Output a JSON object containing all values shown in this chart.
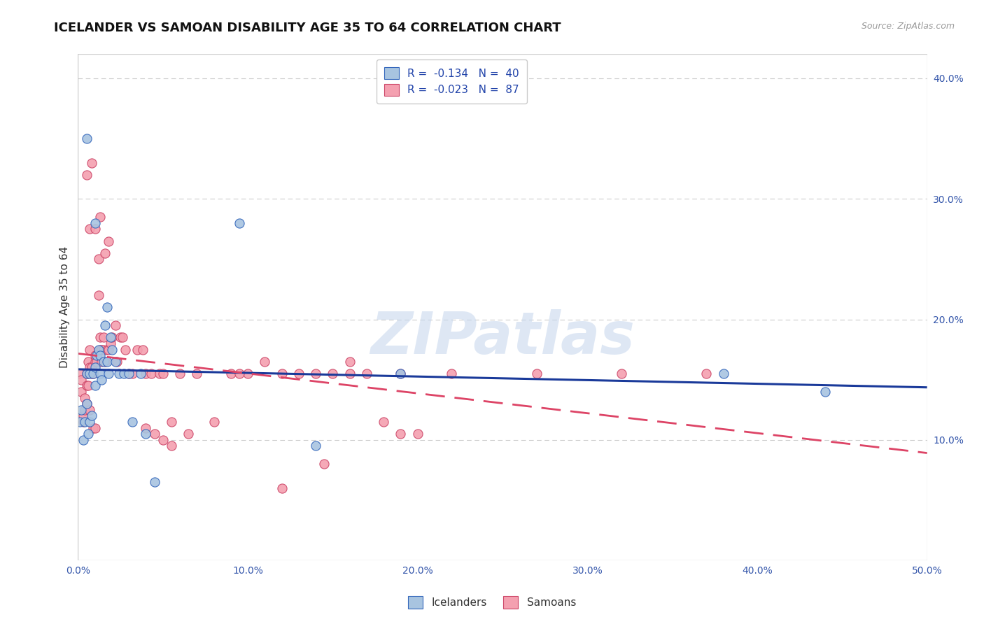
{
  "title": "ICELANDER VS SAMOAN DISABILITY AGE 35 TO 64 CORRELATION CHART",
  "source": "Source: ZipAtlas.com",
  "ylabel": "Disability Age 35 to 64",
  "xlim": [
    0.0,
    0.5
  ],
  "ylim": [
    0.0,
    0.42
  ],
  "xticks": [
    0.0,
    0.1,
    0.2,
    0.3,
    0.4,
    0.5
  ],
  "yticks_right": [
    0.1,
    0.2,
    0.3,
    0.4
  ],
  "ytick_labels_right": [
    "10.0%",
    "20.0%",
    "30.0%",
    "40.0%"
  ],
  "xtick_labels": [
    "0.0%",
    "10.0%",
    "20.0%",
    "30.0%",
    "40.0%",
    "50.0%"
  ],
  "watermark": "ZIPatlas",
  "legend_icelander_R": "-0.134",
  "legend_icelander_N": "40",
  "legend_samoan_R": "-0.023",
  "legend_samoan_N": "87",
  "icelander_color": "#a8c4e0",
  "samoan_color": "#f4a0b0",
  "icelander_edge_color": "#3366bb",
  "samoan_edge_color": "#cc4466",
  "icelander_line_color": "#1a3a9a",
  "samoan_line_color": "#dd4466",
  "icelander_points": [
    [
      0.001,
      0.115
    ],
    [
      0.002,
      0.125
    ],
    [
      0.003,
      0.1
    ],
    [
      0.004,
      0.115
    ],
    [
      0.005,
      0.13
    ],
    [
      0.005,
      0.155
    ],
    [
      0.006,
      0.105
    ],
    [
      0.007,
      0.155
    ],
    [
      0.007,
      0.115
    ],
    [
      0.008,
      0.12
    ],
    [
      0.009,
      0.155
    ],
    [
      0.01,
      0.145
    ],
    [
      0.01,
      0.16
    ],
    [
      0.011,
      0.17
    ],
    [
      0.012,
      0.175
    ],
    [
      0.013,
      0.17
    ],
    [
      0.013,
      0.155
    ],
    [
      0.014,
      0.15
    ],
    [
      0.015,
      0.165
    ],
    [
      0.016,
      0.195
    ],
    [
      0.017,
      0.165
    ],
    [
      0.017,
      0.21
    ],
    [
      0.018,
      0.155
    ],
    [
      0.019,
      0.185
    ],
    [
      0.02,
      0.175
    ],
    [
      0.022,
      0.165
    ],
    [
      0.024,
      0.155
    ],
    [
      0.027,
      0.155
    ],
    [
      0.03,
      0.155
    ],
    [
      0.032,
      0.115
    ],
    [
      0.037,
      0.155
    ],
    [
      0.04,
      0.105
    ],
    [
      0.005,
      0.35
    ],
    [
      0.01,
      0.28
    ],
    [
      0.095,
      0.28
    ],
    [
      0.14,
      0.095
    ],
    [
      0.19,
      0.155
    ],
    [
      0.38,
      0.155
    ],
    [
      0.44,
      0.14
    ],
    [
      0.045,
      0.065
    ]
  ],
  "samoan_points": [
    [
      0.001,
      0.155
    ],
    [
      0.002,
      0.14
    ],
    [
      0.002,
      0.15
    ],
    [
      0.003,
      0.115
    ],
    [
      0.003,
      0.12
    ],
    [
      0.004,
      0.125
    ],
    [
      0.004,
      0.135
    ],
    [
      0.005,
      0.145
    ],
    [
      0.005,
      0.155
    ],
    [
      0.005,
      0.13
    ],
    [
      0.006,
      0.155
    ],
    [
      0.006,
      0.165
    ],
    [
      0.006,
      0.145
    ],
    [
      0.007,
      0.16
    ],
    [
      0.007,
      0.125
    ],
    [
      0.007,
      0.175
    ],
    [
      0.008,
      0.155
    ],
    [
      0.008,
      0.16
    ],
    [
      0.009,
      0.155
    ],
    [
      0.009,
      0.11
    ],
    [
      0.01,
      0.11
    ],
    [
      0.01,
      0.165
    ],
    [
      0.01,
      0.17
    ],
    [
      0.011,
      0.165
    ],
    [
      0.012,
      0.25
    ],
    [
      0.012,
      0.22
    ],
    [
      0.013,
      0.185
    ],
    [
      0.013,
      0.175
    ],
    [
      0.014,
      0.175
    ],
    [
      0.014,
      0.165
    ],
    [
      0.015,
      0.175
    ],
    [
      0.015,
      0.185
    ],
    [
      0.016,
      0.165
    ],
    [
      0.016,
      0.255
    ],
    [
      0.017,
      0.175
    ],
    [
      0.018,
      0.175
    ],
    [
      0.018,
      0.265
    ],
    [
      0.019,
      0.18
    ],
    [
      0.02,
      0.185
    ],
    [
      0.022,
      0.195
    ],
    [
      0.023,
      0.165
    ],
    [
      0.025,
      0.185
    ],
    [
      0.026,
      0.185
    ],
    [
      0.028,
      0.175
    ],
    [
      0.03,
      0.155
    ],
    [
      0.032,
      0.155
    ],
    [
      0.035,
      0.175
    ],
    [
      0.038,
      0.175
    ],
    [
      0.04,
      0.155
    ],
    [
      0.043,
      0.155
    ],
    [
      0.048,
      0.155
    ],
    [
      0.05,
      0.155
    ],
    [
      0.055,
      0.115
    ],
    [
      0.06,
      0.155
    ],
    [
      0.065,
      0.105
    ],
    [
      0.07,
      0.155
    ],
    [
      0.08,
      0.115
    ],
    [
      0.09,
      0.155
    ],
    [
      0.1,
      0.155
    ],
    [
      0.11,
      0.165
    ],
    [
      0.12,
      0.155
    ],
    [
      0.13,
      0.155
    ],
    [
      0.14,
      0.155
    ],
    [
      0.15,
      0.155
    ],
    [
      0.16,
      0.165
    ],
    [
      0.17,
      0.155
    ],
    [
      0.18,
      0.115
    ],
    [
      0.19,
      0.105
    ],
    [
      0.2,
      0.105
    ],
    [
      0.22,
      0.155
    ],
    [
      0.005,
      0.32
    ],
    [
      0.007,
      0.275
    ],
    [
      0.008,
      0.33
    ],
    [
      0.01,
      0.275
    ],
    [
      0.013,
      0.285
    ],
    [
      0.04,
      0.11
    ],
    [
      0.045,
      0.105
    ],
    [
      0.05,
      0.1
    ],
    [
      0.055,
      0.095
    ],
    [
      0.095,
      0.155
    ],
    [
      0.16,
      0.155
    ],
    [
      0.27,
      0.155
    ],
    [
      0.32,
      0.155
    ],
    [
      0.12,
      0.06
    ],
    [
      0.145,
      0.08
    ],
    [
      0.19,
      0.155
    ],
    [
      0.37,
      0.155
    ]
  ],
  "title_fontsize": 13,
  "axis_label_fontsize": 11,
  "tick_fontsize": 10,
  "background_color": "#ffffff",
  "grid_color": "#cccccc"
}
